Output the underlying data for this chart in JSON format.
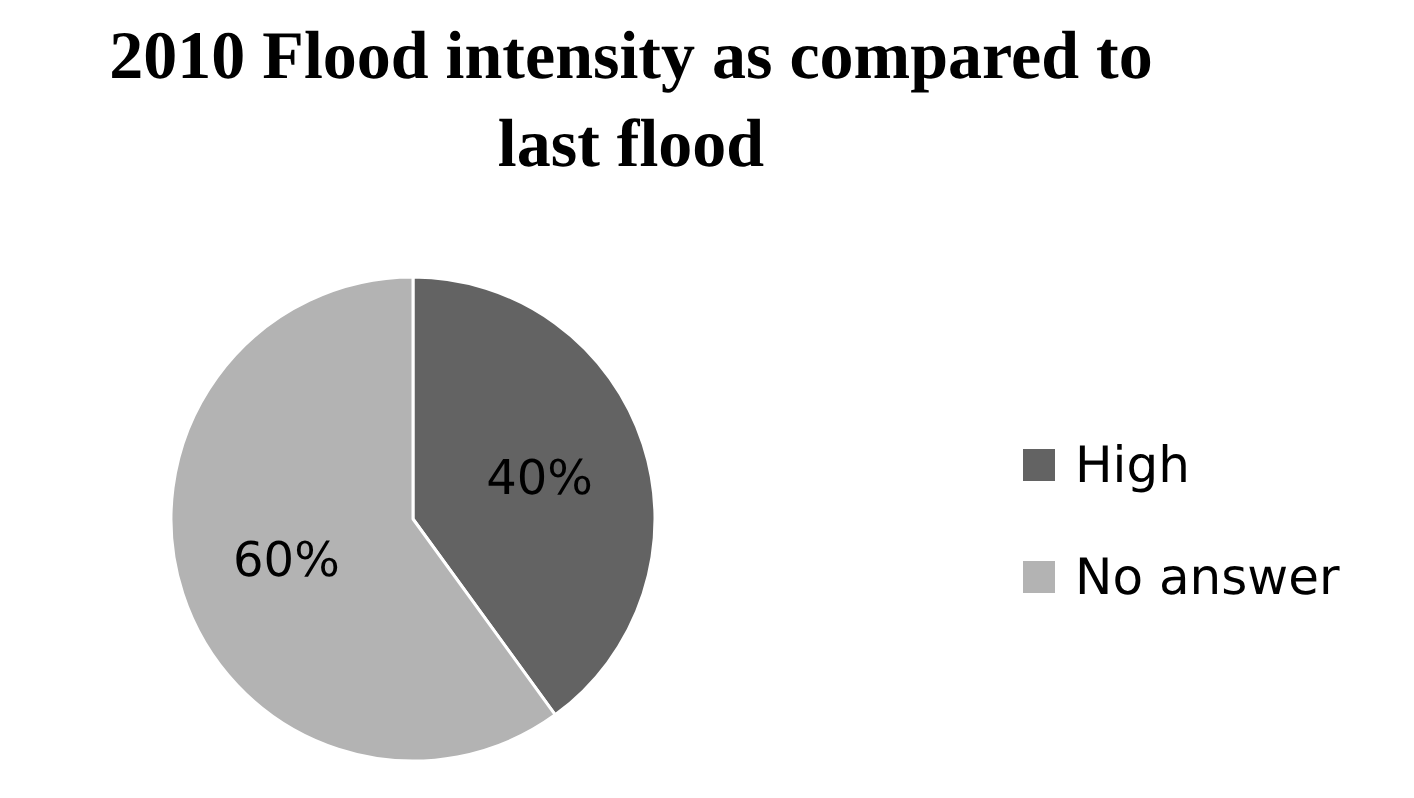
{
  "chart_data": {
    "type": "pie",
    "title": "2010 Flood intensity as compared to last flood",
    "categories": [
      "High",
      "No answer"
    ],
    "values": [
      40,
      60
    ],
    "colors": [
      "#636363",
      "#b3b3b3"
    ],
    "value_labels": [
      "40%",
      "60%"
    ],
    "legend": "right"
  }
}
